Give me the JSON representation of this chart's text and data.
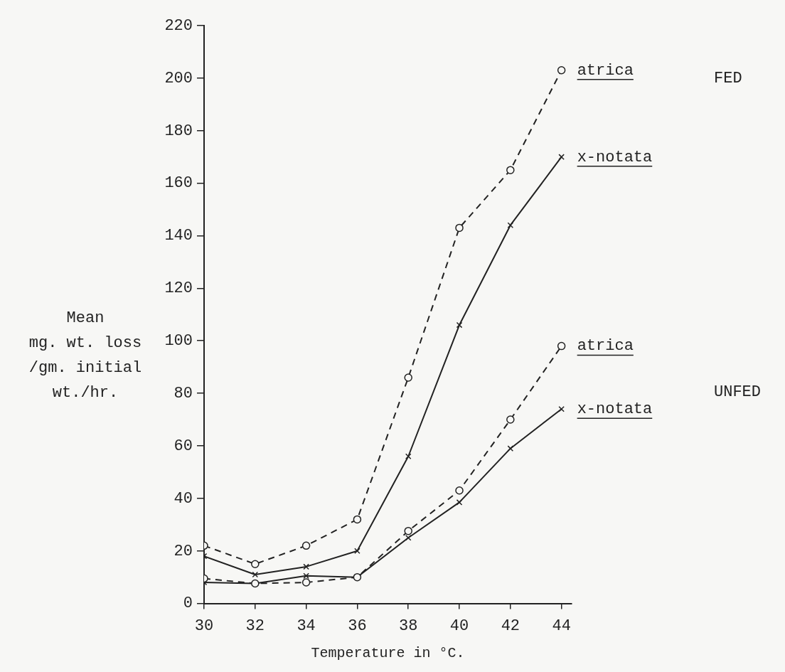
{
  "chart_data": {
    "type": "line",
    "xlabel": "Temperature in °C.",
    "ylabel": "Mean\nmg. wt. loss\n/gm. initial\nwt./hr.",
    "x": [
      30,
      32,
      34,
      36,
      38,
      40,
      42,
      44
    ],
    "xlim": [
      30,
      44.4
    ],
    "xticks": [
      30,
      32,
      34,
      36,
      38,
      40,
      42,
      44
    ],
    "ylim": [
      0,
      220
    ],
    "yticks": [
      0,
      20,
      40,
      60,
      80,
      100,
      120,
      140,
      160,
      180,
      200,
      220
    ],
    "grid": false,
    "legend": false,
    "series": [
      {
        "name": "atrica",
        "color": "#222222",
        "marker": "circle",
        "line_style": "dashed",
        "values": [
          22,
          15,
          22,
          32,
          86,
          143,
          165,
          203
        ]
      },
      {
        "name": "x-notata",
        "color": "#222222",
        "marker": "cross",
        "line_style": "solid",
        "values": [
          18,
          11,
          14,
          20,
          56,
          106,
          144,
          170
        ]
      },
      {
        "name": "atrica",
        "color": "#222222",
        "marker": "circle",
        "line_style": "dashed",
        "values": [
          9.5,
          7.6,
          8,
          10,
          27.6,
          43,
          70,
          98
        ]
      },
      {
        "name": "x-notata",
        "color": "#222222",
        "marker": "cross",
        "line_style": "solid",
        "values": [
          8,
          7.6,
          10.5,
          10,
          25,
          38.5,
          59,
          74
        ]
      }
    ],
    "annotations": [
      "FED",
      "UNFED"
    ]
  }
}
